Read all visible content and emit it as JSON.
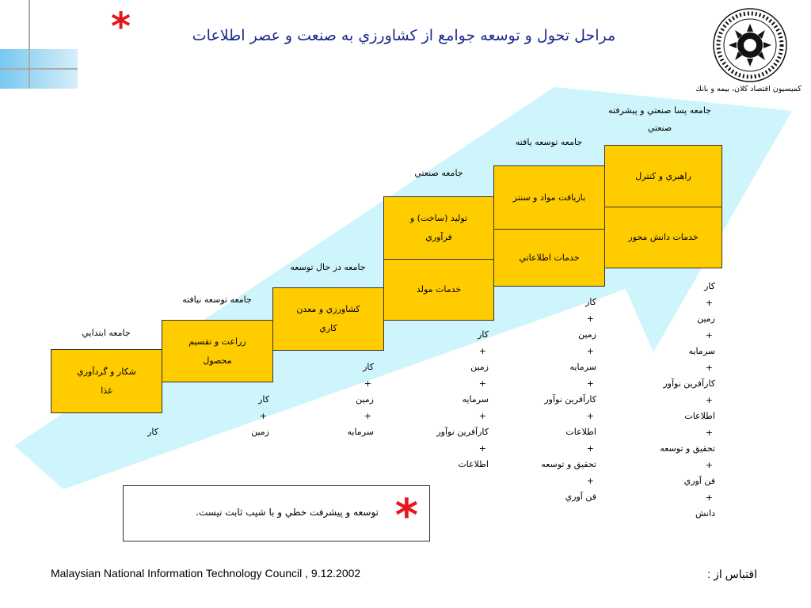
{
  "title": "مراحل تحول و توسعه جوامع از كشاورزي به صنعت و عصر اطلاعات",
  "star_symbol": "*",
  "logo_caption": "كميسيون اقتصاد كلان، بيمه و بانك",
  "stages": [
    {
      "label": "جامعه ابتدايي",
      "boxes": [
        "شكار و گردآوري غذا"
      ],
      "resources": [
        "كار"
      ]
    },
    {
      "label": "جامعه توسعه نيافته",
      "boxes": [
        "زراعت و تقسيم محصول"
      ],
      "resources": [
        "كار",
        "+",
        "زمين"
      ]
    },
    {
      "label": "جامعه در حال توسعه",
      "boxes": [
        "كشاورزي و معدن كاري"
      ],
      "resources": [
        "كار",
        "+",
        "زمين",
        "+",
        "سرمايه"
      ]
    },
    {
      "label": "جامعه صنعتي",
      "boxes": [
        "توليد (ساخت) و فرآوري",
        "خدمات مولد"
      ],
      "resources": [
        "كار",
        "+",
        "زمين",
        "+",
        "سرمايه",
        "+",
        "كارآفرين  نوآور",
        "+",
        "اطلاعات"
      ]
    },
    {
      "label": "جامعه توسعه يافته",
      "boxes": [
        "بازيافت مواد و سنتز",
        "خدمات اطلاعاتي"
      ],
      "resources": [
        "كار",
        "+",
        "زمين",
        "+",
        "سرمايه",
        "+",
        "كارآفرين  نوآور",
        "+",
        "اطلاعات",
        "+",
        "تحقيق و توسعه",
        "+",
        "فن آوري"
      ]
    },
    {
      "label": "جامعه پسا صنعتي و پيشرفته صنعتي",
      "boxes": [
        "راهبري و كنترل",
        "خدمات دانش محور"
      ],
      "resources": [
        "كار",
        "+",
        "زمين",
        "+",
        "سرمايه",
        "+",
        "كارآفرين  نوآور",
        "+",
        "اطلاعات",
        "+",
        "تحقيق و توسعه",
        "+",
        "فن آوري",
        "+",
        "دانش"
      ]
    }
  ],
  "note": "توسعه و پيشرفت خطي و با شيب ثابت نيست.",
  "footer_source": "Malaysian National Information Technology Council , 9.12.2002",
  "footer_quote": "اقتباس از :",
  "colors": {
    "box": "#ffcc00",
    "arrow": "#cef5fb",
    "title": "#1b2a8c",
    "star": "#e8161b",
    "accent_bar": "#8fd0f2"
  }
}
